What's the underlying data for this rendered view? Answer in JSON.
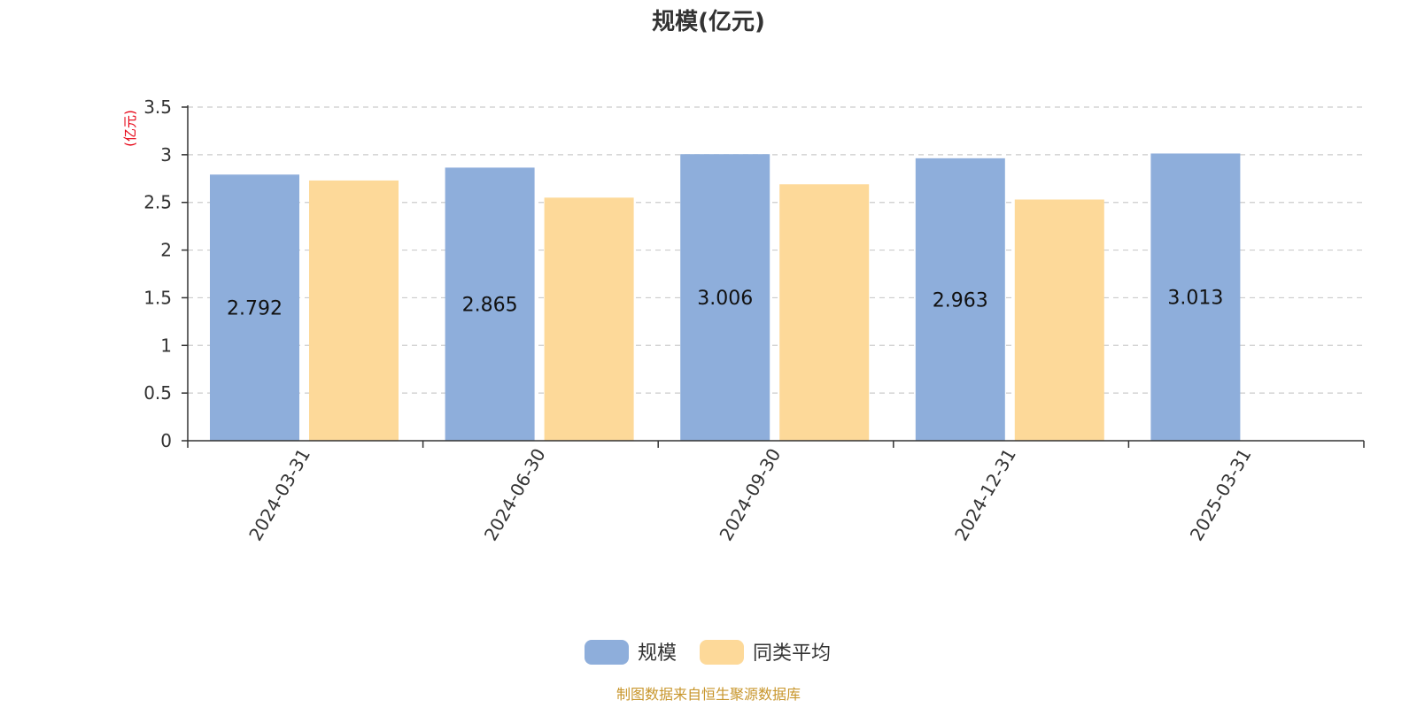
{
  "chart_data": {
    "type": "bar",
    "title": "规模(亿元)",
    "y_unit_label": "(亿元)",
    "categories": [
      "2024-03-31",
      "2024-06-30",
      "2024-09-30",
      "2024-12-31",
      "2025-03-31"
    ],
    "series": [
      {
        "name": "规模",
        "values": [
          2.792,
          2.865,
          3.006,
          2.963,
          3.013
        ],
        "labels": [
          "2.792",
          "2.865",
          "3.006",
          "2.963",
          "3.013"
        ],
        "show_labels": true,
        "color": "#8eaedb"
      },
      {
        "name": "同类平均",
        "values": [
          2.73,
          2.55,
          2.69,
          2.53,
          null
        ],
        "show_labels": false,
        "color": "#fdd999"
      }
    ],
    "ylim": [
      0,
      3.5
    ],
    "yticks": [
      {
        "value": 0,
        "label": "0"
      },
      {
        "value": 0.5,
        "label": "0.5"
      },
      {
        "value": 1,
        "label": "1"
      },
      {
        "value": 1.5,
        "label": "1.5"
      },
      {
        "value": 2,
        "label": "2"
      },
      {
        "value": 2.5,
        "label": "2.5"
      },
      {
        "value": 3,
        "label": "3"
      },
      {
        "value": 3.5,
        "label": "3.5"
      }
    ],
    "grid": true,
    "legend_position": "bottom-center",
    "x_label_rotation_deg": -60
  },
  "colors": {
    "unit_label": "#e60012",
    "source_note": "#c8962c",
    "axis": "#333333",
    "grid": "#cccccc"
  },
  "footer": {
    "source_note": "制图数据来自恒生聚源数据库"
  }
}
